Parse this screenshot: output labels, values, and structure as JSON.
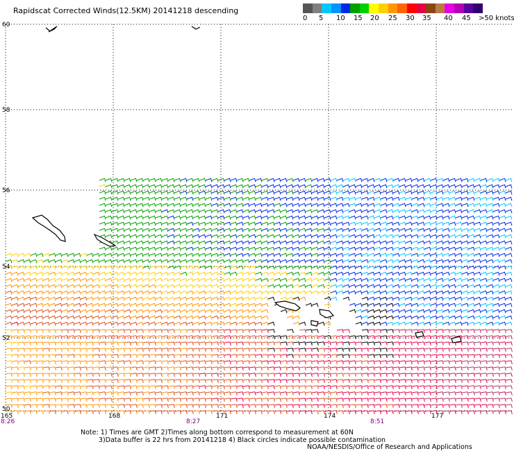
{
  "title": "Rapidscat Corrected Winds(12.5KM) 20141218 descending",
  "legend": {
    "colors": [
      "#555555",
      "#808080",
      "#00c8ff",
      "#0096ff",
      "#0028e6",
      "#00a000",
      "#00d000",
      "#ffff00",
      "#ffd000",
      "#ff9600",
      "#ff6400",
      "#ff0000",
      "#e60046",
      "#8b4513",
      "#bb7a44",
      "#e600e6",
      "#b400b4",
      "#5a00a0",
      "#32006e"
    ],
    "labels": [
      "0",
      "5",
      "10",
      "15",
      "20",
      "25",
      "30",
      "35",
      "40",
      "45",
      ">50 knots"
    ]
  },
  "axes": {
    "lat_labels": [
      "60",
      "58",
      "56",
      "54",
      "52",
      "50"
    ],
    "lon_labels": [
      "165",
      "168",
      "171",
      "174",
      "177"
    ]
  },
  "times": [
    "8:26",
    "8:27",
    "8:51"
  ],
  "notes": {
    "line1": "Note: 1) Times are GMT 2)Times along bottom correspond to measurement at 60N",
    "line2": "3)Data buffer is 22 hrs from 20141218 4) Black circles indicate possible contamination",
    "line3": "NOAA/NESDIS/Office of Research and Applications"
  }
}
